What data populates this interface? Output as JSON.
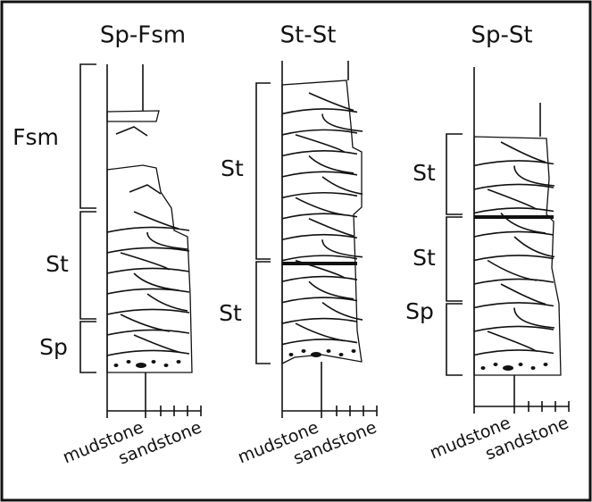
{
  "columns": [
    {
      "title": "Sp-Fsm",
      "facies": [
        "Fsm",
        "St",
        "Sp"
      ],
      "axis": [
        "mudstone",
        "sandstone"
      ]
    },
    {
      "title": "St-St",
      "facies": [
        "St",
        "St"
      ],
      "axis": [
        "mudstone",
        "sandstone"
      ]
    },
    {
      "title": "Sp-St",
      "facies": [
        "St",
        "St",
        "Sp"
      ],
      "axis": [
        "mudstone",
        "sandstone"
      ]
    }
  ]
}
